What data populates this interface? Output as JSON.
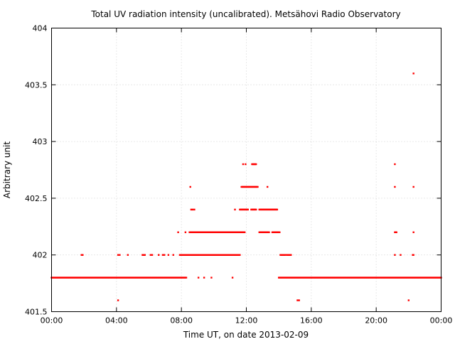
{
  "chart_data": {
    "type": "scatter",
    "title": "Total UV radiation intensity (uncalibrated). Metsähovi Radio Observatory",
    "xlabel": "Time UT, on date 2013-02-09",
    "ylabel": "Arbitrary unit",
    "xlim": [
      0,
      24
    ],
    "ylim": [
      401.5,
      404
    ],
    "x_ticks": [
      {
        "value": 0,
        "label": "00:00"
      },
      {
        "value": 4,
        "label": "04:00"
      },
      {
        "value": 8,
        "label": "08:00"
      },
      {
        "value": 12,
        "label": "12:00"
      },
      {
        "value": 16,
        "label": "16:00"
      },
      {
        "value": 20,
        "label": "20:00"
      },
      {
        "value": 24,
        "label": "00:00"
      }
    ],
    "y_ticks": [
      {
        "value": 401.5,
        "label": "401.5"
      },
      {
        "value": 402,
        "label": "402"
      },
      {
        "value": 402.5,
        "label": "402.5"
      },
      {
        "value": 403,
        "label": "403"
      },
      {
        "value": 403.5,
        "label": "403.5"
      },
      {
        "value": 404,
        "label": "404"
      }
    ],
    "grid": true,
    "marker_color": "#ff0000",
    "series": [
      {
        "segments": [
          {
            "y": 401.8,
            "from": 0.0,
            "to": 8.3,
            "step": 0.05
          },
          {
            "y": 401.8,
            "from": 14.0,
            "to": 24.0,
            "step": 0.05
          },
          {
            "y": 402.0,
            "from": 7.9,
            "to": 11.6,
            "step": 0.05
          },
          {
            "y": 402.0,
            "from": 14.1,
            "to": 14.4,
            "step": 0.05
          },
          {
            "y": 402.0,
            "from": 14.5,
            "to": 14.75,
            "step": 0.05
          },
          {
            "y": 402.2,
            "from": 8.5,
            "to": 11.9,
            "step": 0.05
          },
          {
            "y": 402.2,
            "from": 12.8,
            "to": 13.4,
            "step": 0.05
          },
          {
            "y": 402.2,
            "from": 13.6,
            "to": 14.05,
            "step": 0.05
          },
          {
            "y": 402.4,
            "from": 11.6,
            "to": 12.1,
            "step": 0.05
          },
          {
            "y": 402.4,
            "from": 12.3,
            "to": 12.6,
            "step": 0.05
          },
          {
            "y": 402.4,
            "from": 12.8,
            "to": 13.9,
            "step": 0.05
          },
          {
            "y": 402.6,
            "from": 11.7,
            "to": 12.7,
            "step": 0.05
          },
          {
            "y": 402.8,
            "from": 12.35,
            "to": 12.6,
            "step": 0.05
          }
        ],
        "points": [
          [
            1.85,
            402.0
          ],
          [
            1.92,
            402.0
          ],
          [
            4.1,
            402.0
          ],
          [
            4.2,
            402.0
          ],
          [
            4.7,
            402.0
          ],
          [
            5.6,
            402.0
          ],
          [
            5.65,
            402.0
          ],
          [
            5.7,
            402.0
          ],
          [
            5.75,
            402.0
          ],
          [
            6.1,
            402.0
          ],
          [
            6.2,
            402.0
          ],
          [
            6.6,
            402.0
          ],
          [
            6.85,
            402.0
          ],
          [
            6.95,
            402.0
          ],
          [
            7.2,
            402.0
          ],
          [
            7.5,
            402.0
          ],
          [
            7.8,
            402.2
          ],
          [
            8.25,
            402.2
          ],
          [
            8.55,
            402.6
          ],
          [
            8.6,
            402.4
          ],
          [
            8.7,
            402.4
          ],
          [
            8.8,
            402.4
          ],
          [
            9.05,
            401.8
          ],
          [
            9.4,
            401.8
          ],
          [
            9.85,
            401.8
          ],
          [
            11.15,
            401.8
          ],
          [
            11.3,
            402.4
          ],
          [
            11.8,
            402.8
          ],
          [
            11.95,
            402.8
          ],
          [
            13.3,
            402.6
          ],
          [
            4.1,
            401.6
          ],
          [
            15.15,
            401.6
          ],
          [
            15.25,
            401.6
          ],
          [
            21.15,
            402.8
          ],
          [
            21.15,
            402.6
          ],
          [
            21.15,
            402.2
          ],
          [
            21.2,
            402.2
          ],
          [
            21.25,
            402.2
          ],
          [
            21.15,
            402.0
          ],
          [
            21.5,
            402.0
          ],
          [
            22.25,
            402.0
          ],
          [
            22.3,
            402.0
          ],
          [
            22.3,
            402.2
          ],
          [
            22.3,
            402.6
          ],
          [
            22.3,
            403.6
          ],
          [
            22.0,
            401.6
          ]
        ]
      }
    ]
  }
}
